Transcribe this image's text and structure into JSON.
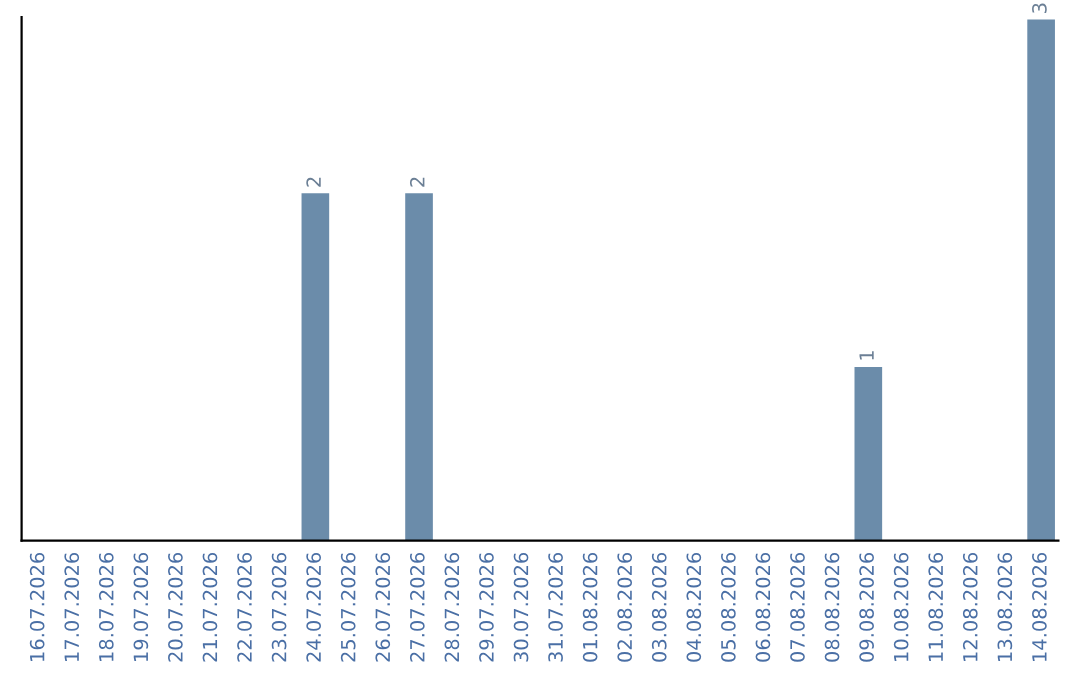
{
  "chart_data": {
    "type": "bar",
    "categories": [
      "16.07.2026",
      "17.07.2026",
      "18.07.2026",
      "19.07.2026",
      "20.07.2026",
      "21.07.2026",
      "22.07.2026",
      "23.07.2026",
      "24.07.2026",
      "25.07.2026",
      "26.07.2026",
      "27.07.2026",
      "28.07.2026",
      "29.07.2026",
      "30.07.2026",
      "31.07.2026",
      "01.08.2026",
      "02.08.2026",
      "03.08.2026",
      "04.08.2026",
      "05.08.2026",
      "06.08.2026",
      "07.08.2026",
      "08.08.2026",
      "09.08.2026",
      "10.08.2026",
      "11.08.2026",
      "12.08.2026",
      "13.08.2026",
      "14.08.2026"
    ],
    "values": [
      0,
      0,
      0,
      0,
      0,
      0,
      0,
      0,
      2,
      0,
      0,
      2,
      0,
      0,
      0,
      0,
      0,
      0,
      0,
      0,
      0,
      0,
      0,
      0,
      1,
      0,
      0,
      0,
      0,
      3
    ],
    "color": "#6b8caa",
    "value_labels": [
      null,
      null,
      null,
      null,
      null,
      null,
      null,
      null,
      "2",
      null,
      null,
      "2",
      null,
      null,
      null,
      null,
      null,
      null,
      null,
      null,
      null,
      null,
      null,
      null,
      "1",
      null,
      null,
      null,
      null,
      "3"
    ],
    "grid": false,
    "legend": false
  }
}
